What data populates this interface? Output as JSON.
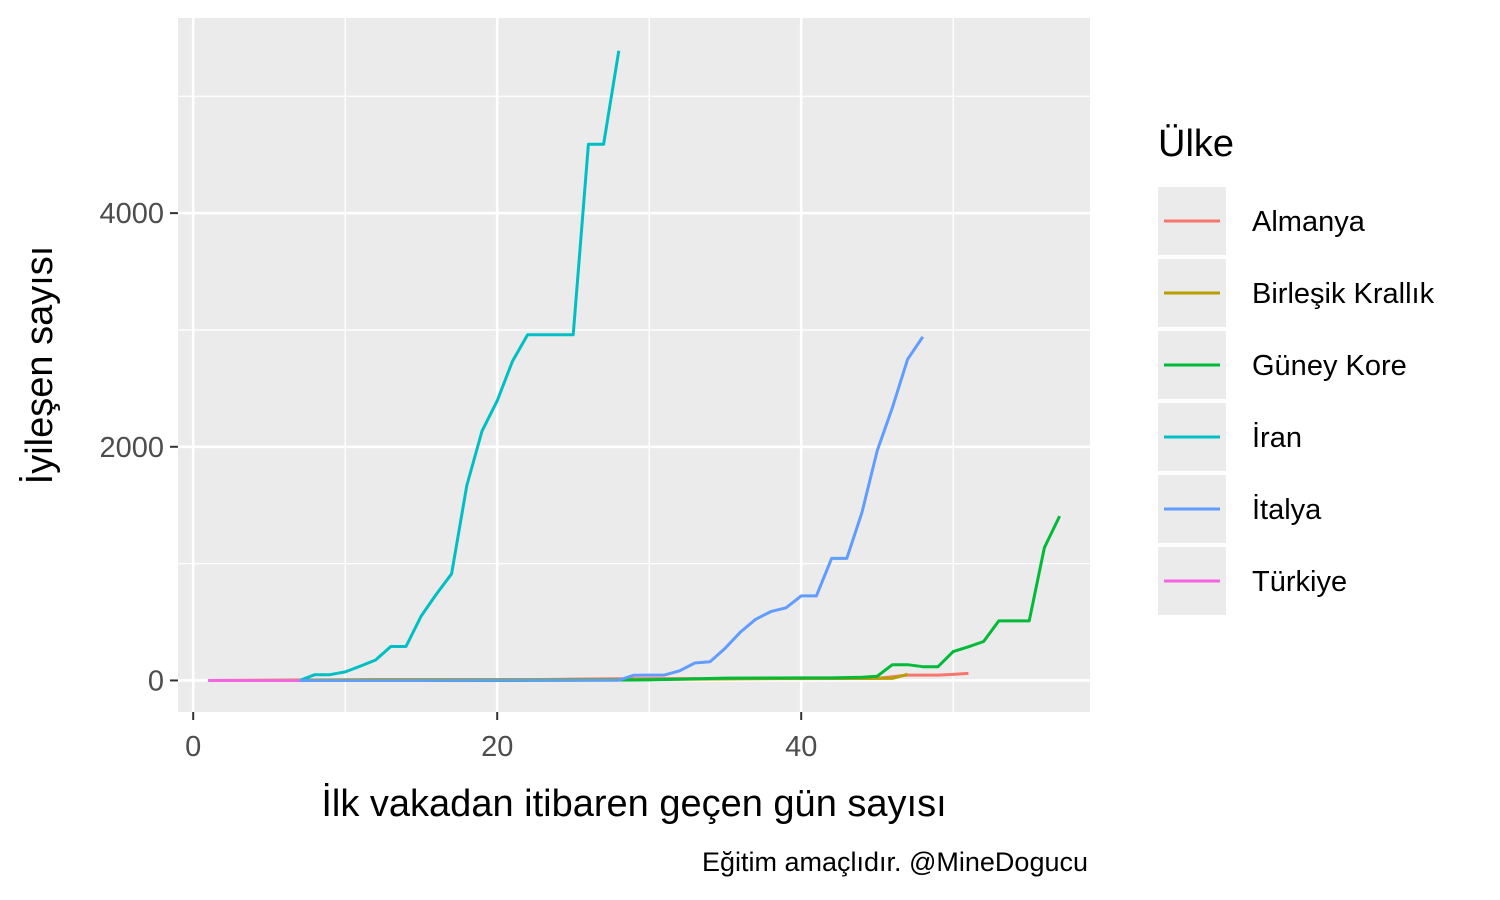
{
  "chart_data": {
    "type": "line",
    "title": "",
    "xlabel": "İlk vakadan itibaren geçen gün sayısı",
    "ylabel": "İyileşen sayısı",
    "caption": "Eğitim amaçlıdır. @MineDogucu",
    "xlim": [
      -1,
      59
    ],
    "ylim": [
      -270,
      5670
    ],
    "x_ticks": [
      0,
      20,
      40
    ],
    "y_ticks": [
      0,
      2000,
      4000
    ],
    "grid": true,
    "legend": {
      "title": "Ülke",
      "position": "right"
    },
    "series": [
      {
        "name": "Almanya",
        "color": "#F8766D",
        "points": [
          [
            1,
            0
          ],
          [
            10,
            0
          ],
          [
            20,
            2
          ],
          [
            25,
            12
          ],
          [
            30,
            16
          ],
          [
            40,
            16
          ],
          [
            45,
            18
          ],
          [
            47,
            46
          ],
          [
            48,
            46
          ],
          [
            49,
            46
          ],
          [
            50,
            52
          ],
          [
            51,
            60
          ]
        ]
      },
      {
        "name": "Birleşik Krallık",
        "color": "#B79F00",
        "points": [
          [
            1,
            0
          ],
          [
            13,
            8
          ],
          [
            20,
            8
          ],
          [
            25,
            8
          ],
          [
            30,
            8
          ],
          [
            40,
            18
          ],
          [
            45,
            18
          ],
          [
            46,
            18
          ],
          [
            47,
            53
          ]
        ]
      },
      {
        "name": "Güney Kore",
        "color": "#00BA38",
        "points": [
          [
            1,
            0
          ],
          [
            5,
            0
          ],
          [
            10,
            0
          ],
          [
            20,
            0
          ],
          [
            25,
            2
          ],
          [
            30,
            5
          ],
          [
            35,
            20
          ],
          [
            40,
            22
          ],
          [
            42,
            22
          ],
          [
            44,
            27
          ],
          [
            45,
            36
          ],
          [
            46,
            135
          ],
          [
            47,
            135
          ],
          [
            48,
            118
          ],
          [
            49,
            118
          ],
          [
            50,
            247
          ],
          [
            51,
            288
          ],
          [
            52,
            333
          ],
          [
            53,
            510
          ],
          [
            55,
            510
          ],
          [
            56,
            1137
          ],
          [
            57,
            1407
          ]
        ]
      },
      {
        "name": "İran",
        "color": "#00BFC4",
        "points": [
          [
            1,
            0
          ],
          [
            7,
            0
          ],
          [
            8,
            49
          ],
          [
            9,
            49
          ],
          [
            10,
            73
          ],
          [
            11,
            123
          ],
          [
            12,
            175
          ],
          [
            13,
            291
          ],
          [
            14,
            291
          ],
          [
            15,
            552
          ],
          [
            16,
            739
          ],
          [
            17,
            913
          ],
          [
            18,
            1669
          ],
          [
            19,
            2134
          ],
          [
            20,
            2394
          ],
          [
            21,
            2731
          ],
          [
            22,
            2959
          ],
          [
            23,
            2959
          ],
          [
            24,
            2959
          ],
          [
            25,
            2959
          ],
          [
            26,
            4590
          ],
          [
            27,
            4590
          ],
          [
            28,
            5389
          ]
        ]
      },
      {
        "name": "İtalya",
        "color": "#619CFF",
        "points": [
          [
            1,
            0
          ],
          [
            10,
            0
          ],
          [
            20,
            1
          ],
          [
            26,
            2
          ],
          [
            28,
            2
          ],
          [
            29,
            45
          ],
          [
            30,
            46
          ],
          [
            31,
            46
          ],
          [
            32,
            83
          ],
          [
            33,
            149
          ],
          [
            34,
            160
          ],
          [
            35,
            276
          ],
          [
            36,
            414
          ],
          [
            37,
            523
          ],
          [
            38,
            589
          ],
          [
            39,
            622
          ],
          [
            40,
            724
          ],
          [
            41,
            724
          ],
          [
            42,
            1045
          ],
          [
            43,
            1045
          ],
          [
            44,
            1439
          ],
          [
            45,
            1966
          ],
          [
            46,
            2335
          ],
          [
            47,
            2749
          ],
          [
            48,
            2941
          ]
        ]
      },
      {
        "name": "Türkiye",
        "color": "#F564E3",
        "points": [
          [
            1,
            0
          ],
          [
            4,
            0
          ],
          [
            7,
            0
          ]
        ]
      }
    ]
  }
}
